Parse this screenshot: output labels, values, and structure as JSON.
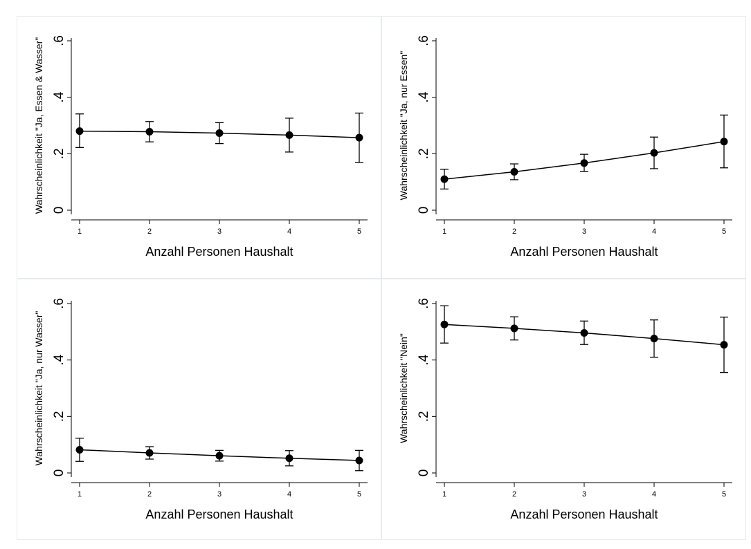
{
  "figure": {
    "background": "#ffffff",
    "panel_border": "#e6ebee",
    "line_color": "#000000"
  },
  "chart_data": [
    {
      "type": "line",
      "xlabel": "Anzahl Personen Haushalt",
      "ylabel": "Wahrscheinlichkeit \"Ja, Essen & Wasser\"",
      "x": [
        1,
        2,
        3,
        4,
        5
      ],
      "y": [
        0.28,
        0.278,
        0.273,
        0.266,
        0.257
      ],
      "ci_low": [
        0.222,
        0.242,
        0.236,
        0.206,
        0.169
      ],
      "ci_high": [
        0.341,
        0.314,
        0.31,
        0.326,
        0.344
      ],
      "ylim": [
        0,
        0.6
      ],
      "yticks": [
        0,
        0.2,
        0.4,
        0.6
      ],
      "ytick_labels": [
        "0",
        ".2",
        ".4",
        ".6"
      ],
      "xticks": [
        1,
        2,
        3,
        4,
        5
      ],
      "xtick_labels": [
        "1",
        "2",
        "3",
        "4",
        "5"
      ],
      "grid": false
    },
    {
      "type": "line",
      "xlabel": "Anzahl Personen Haushalt",
      "ylabel": "Wahrscheinlichkeit \"Ja, nur Essen\"",
      "x": [
        1,
        2,
        3,
        4,
        5
      ],
      "y": [
        0.11,
        0.136,
        0.167,
        0.203,
        0.243
      ],
      "ci_low": [
        0.075,
        0.108,
        0.137,
        0.147,
        0.15
      ],
      "ci_high": [
        0.145,
        0.164,
        0.198,
        0.259,
        0.337
      ],
      "ylim": [
        0,
        0.6
      ],
      "yticks": [
        0,
        0.2,
        0.4,
        0.6
      ],
      "ytick_labels": [
        "0",
        ".2",
        ".4",
        ".6"
      ],
      "xticks": [
        1,
        2,
        3,
        4,
        5
      ],
      "xtick_labels": [
        "1",
        "2",
        "3",
        "4",
        "5"
      ],
      "grid": false
    },
    {
      "type": "line",
      "xlabel": "Anzahl Personen Haushalt",
      "ylabel": "Wahrscheinlichkeit \"Ja, nur Wasser\"",
      "x": [
        1,
        2,
        3,
        4,
        5
      ],
      "y": [
        0.082,
        0.071,
        0.061,
        0.052,
        0.044
      ],
      "ci_low": [
        0.041,
        0.049,
        0.042,
        0.025,
        0.008
      ],
      "ci_high": [
        0.123,
        0.093,
        0.08,
        0.079,
        0.08
      ],
      "ylim": [
        0,
        0.6
      ],
      "yticks": [
        0,
        0.2,
        0.4,
        0.6
      ],
      "ytick_labels": [
        "0",
        ".2",
        ".4",
        ".6"
      ],
      "xticks": [
        1,
        2,
        3,
        4,
        5
      ],
      "xtick_labels": [
        "1",
        "2",
        "3",
        "4",
        "5"
      ],
      "grid": false
    },
    {
      "type": "line",
      "xlabel": "Anzahl Personen Haushalt",
      "ylabel": "Wahrscheinlichkeit \"Nein\"",
      "x": [
        1,
        2,
        3,
        4,
        5
      ],
      "y": [
        0.526,
        0.512,
        0.496,
        0.476,
        0.454
      ],
      "ci_low": [
        0.46,
        0.471,
        0.455,
        0.41,
        0.356
      ],
      "ci_high": [
        0.592,
        0.553,
        0.538,
        0.542,
        0.552
      ],
      "ylim": [
        0,
        0.6
      ],
      "yticks": [
        0,
        0.2,
        0.4,
        0.6
      ],
      "ytick_labels": [
        "0",
        ".2",
        ".4",
        ".6"
      ],
      "xticks": [
        1,
        2,
        3,
        4,
        5
      ],
      "xtick_labels": [
        "1",
        "2",
        "3",
        "4",
        "5"
      ],
      "grid": false
    }
  ]
}
